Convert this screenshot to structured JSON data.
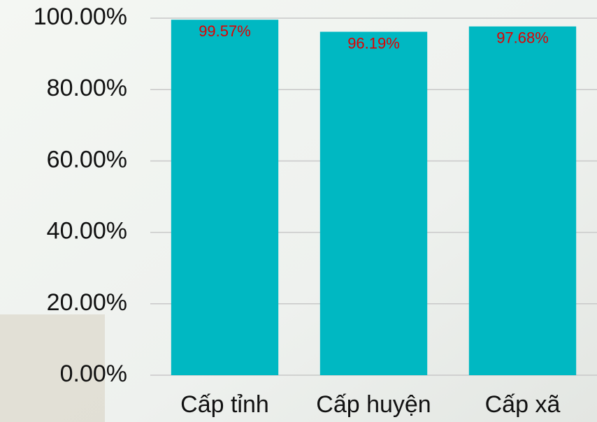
{
  "chart_data": {
    "type": "bar",
    "categories": [
      "Cấp tỉnh",
      "Cấp huyện",
      "Cấp xã"
    ],
    "values": [
      99.57,
      96.19,
      97.68
    ],
    "value_labels": [
      "99.57%",
      "96.19%",
      "97.68%"
    ],
    "color": "#00b8c2",
    "label_color": "#e00000",
    "ylim": [
      0,
      100
    ],
    "yticks": [
      {
        "value": 0,
        "label": "0.00%"
      },
      {
        "value": 20,
        "label": "20.00%"
      },
      {
        "value": 40,
        "label": "40.00%"
      },
      {
        "value": 60,
        "label": "60.00%"
      },
      {
        "value": 80,
        "label": "80.00%"
      },
      {
        "value": 100,
        "label": "100.00%"
      }
    ],
    "grid": true
  }
}
